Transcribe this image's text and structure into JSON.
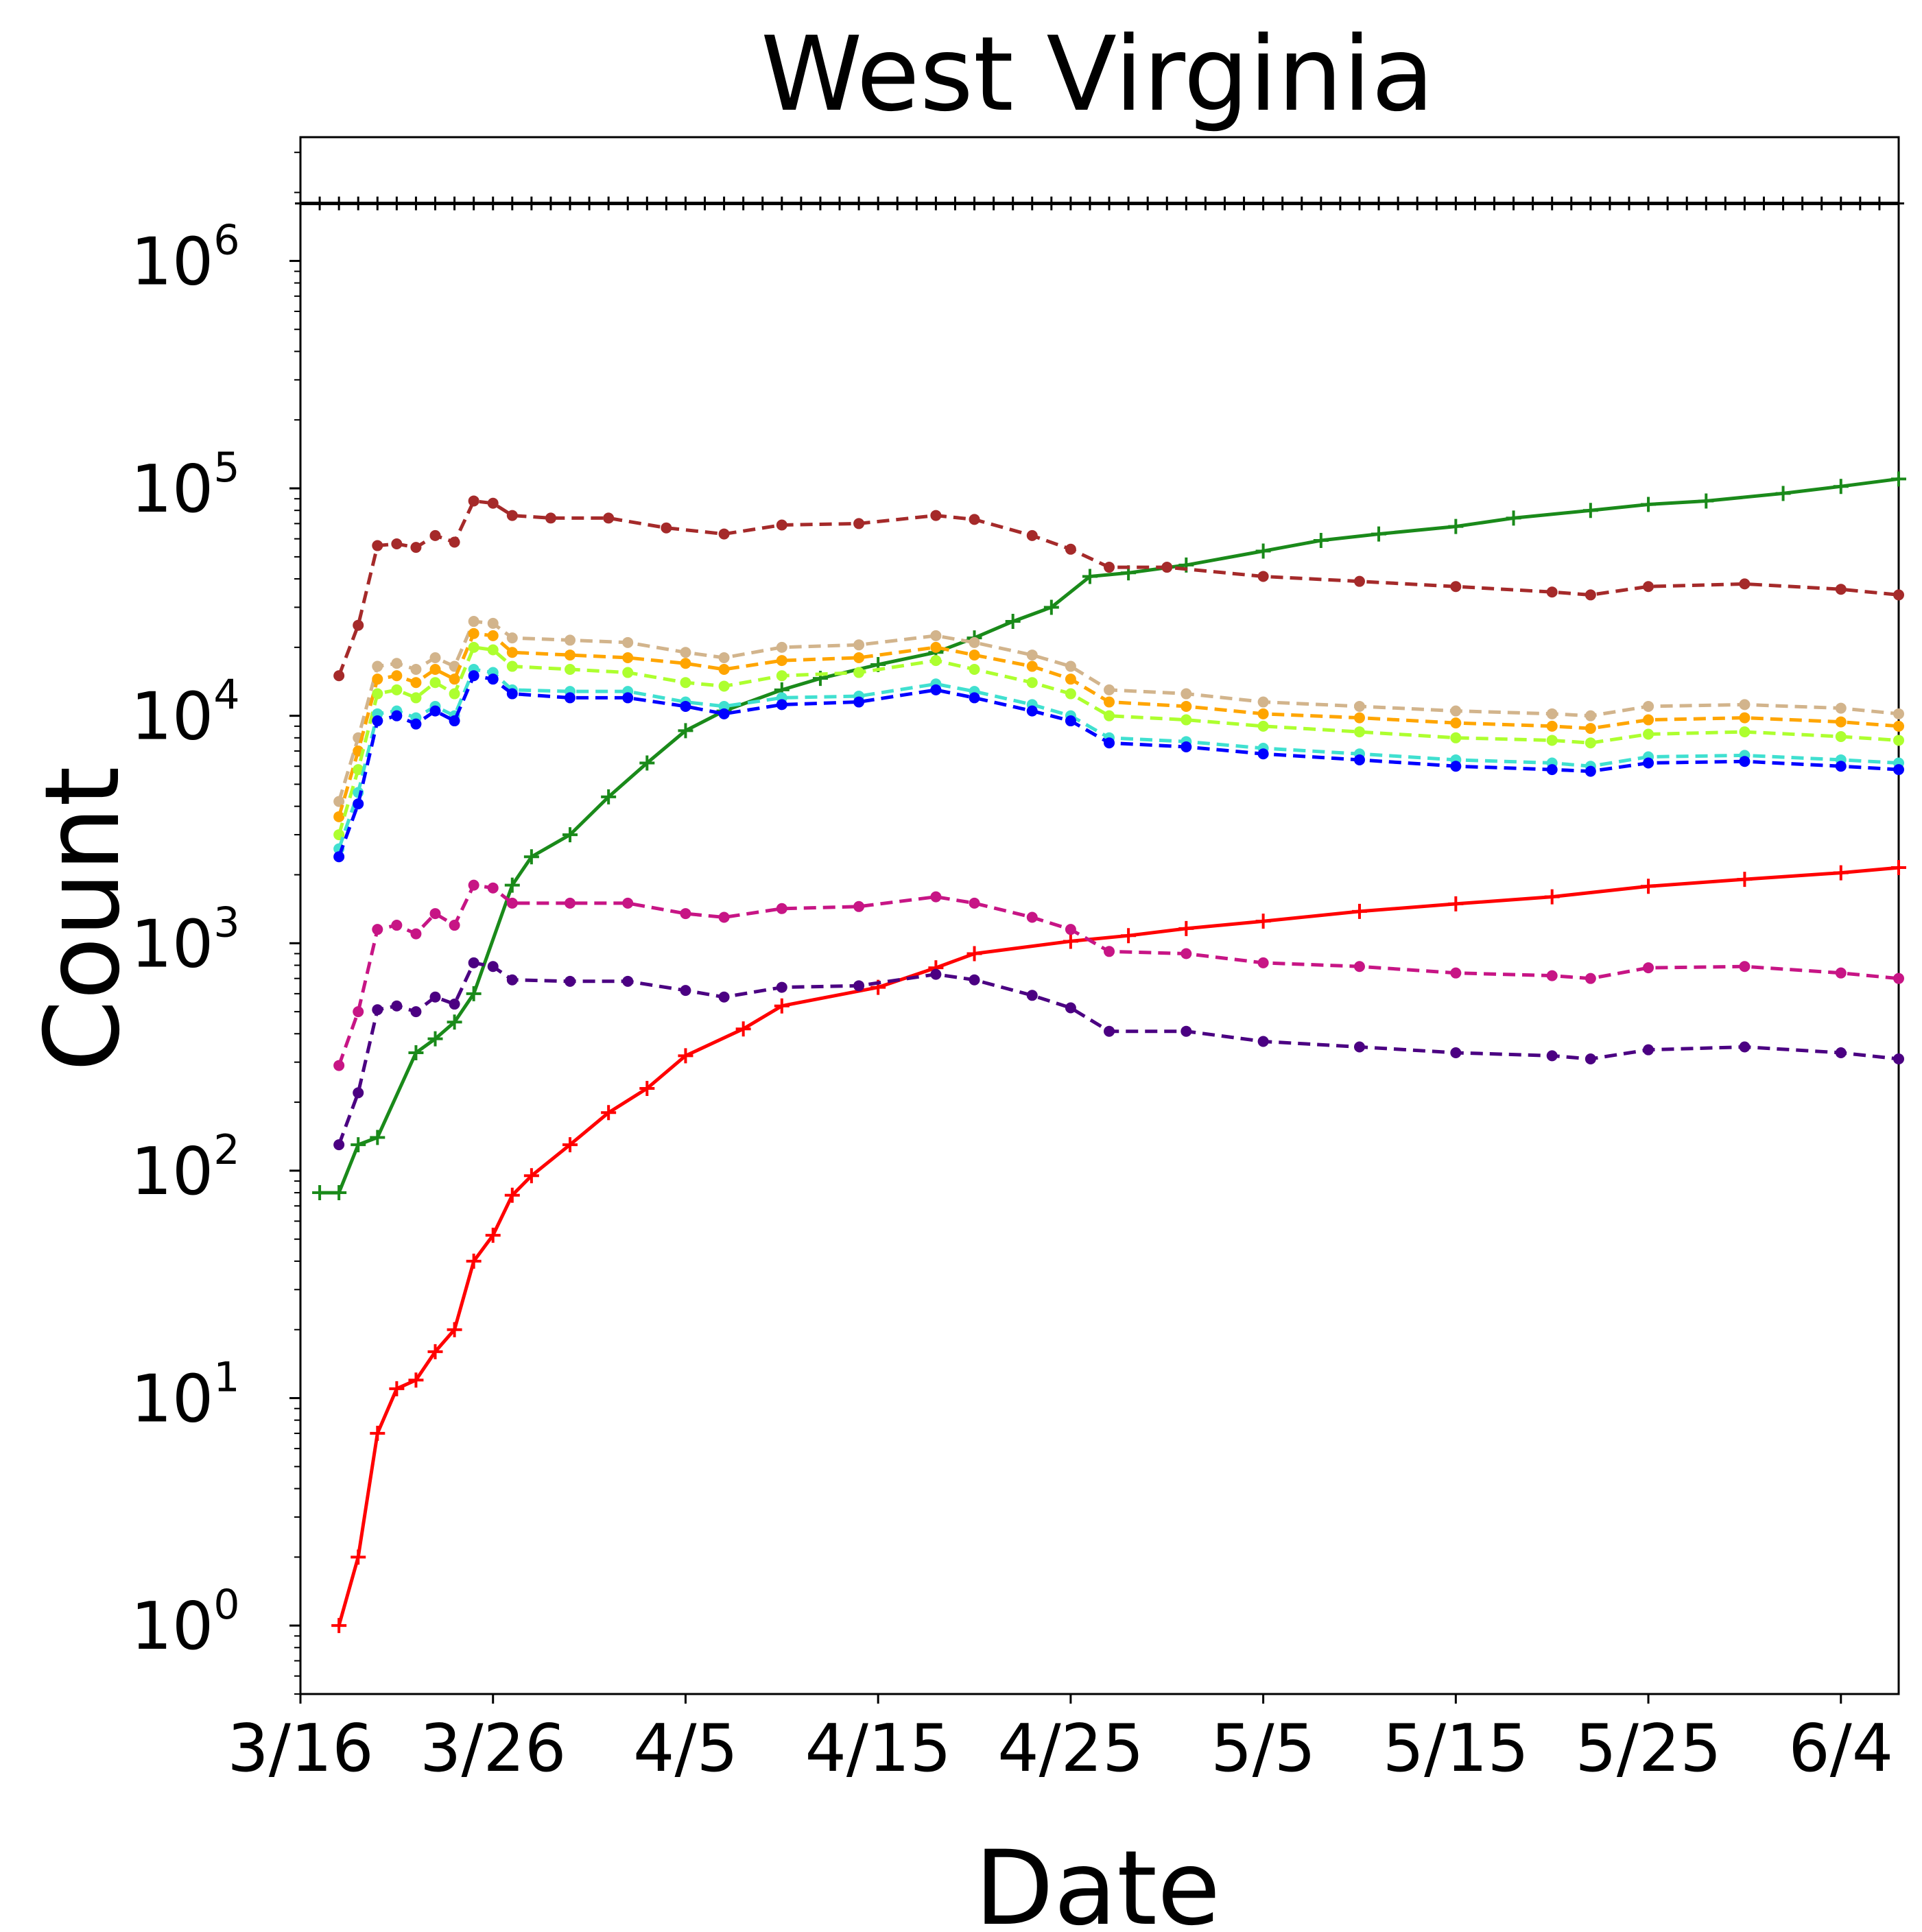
{
  "chart_data": {
    "type": "line",
    "title": "West Virginia",
    "xlabel": "Date",
    "ylabel": "Count",
    "x_tick_labels": [
      "3/16",
      "3/26",
      "4/5",
      "4/15",
      "4/25",
      "5/5",
      "5/15",
      "5/25",
      "6/4"
    ],
    "y_scale": "log",
    "y_ticks": [
      {
        "base": "10",
        "exp": "0"
      },
      {
        "base": "10",
        "exp": "1"
      },
      {
        "base": "10",
        "exp": "2"
      },
      {
        "base": "10",
        "exp": "3"
      },
      {
        "base": "10",
        "exp": "4"
      },
      {
        "base": "10",
        "exp": "5"
      },
      {
        "base": "10",
        "exp": "6"
      }
    ],
    "ylim": [
      0.5,
      3500000
    ],
    "horizontal_reference_line": 1790000,
    "x_range_days": [
      "3/16",
      "6/7"
    ],
    "grid": false,
    "legend": "none",
    "series": [
      {
        "color": "#1a8a1a",
        "style": "solid",
        "marker": "plus",
        "x": [
          "3/17",
          "3/18",
          "3/19",
          "3/20",
          "3/22",
          "3/23",
          "3/24",
          "3/25",
          "3/27",
          "3/28",
          "3/30",
          "4/1",
          "4/3",
          "4/5",
          "4/7",
          "4/10",
          "4/12",
          "4/15",
          "4/18",
          "4/20",
          "4/22",
          "4/24",
          "4/26",
          "4/28",
          "5/1",
          "5/5",
          "5/8",
          "5/11",
          "5/15",
          "5/18",
          "5/22",
          "5/25",
          "5/28",
          "6/1",
          "6/4",
          "6/7"
        ],
        "values": [
          80,
          80,
          130,
          140,
          330,
          380,
          450,
          600,
          1800,
          2400,
          3000,
          4400,
          6200,
          8600,
          10500,
          13000,
          14600,
          16800,
          19000,
          22000,
          26000,
          30000,
          41000,
          42500,
          46000,
          53000,
          59000,
          63000,
          68000,
          74000,
          80000,
          85000,
          88000,
          95000,
          102000,
          110000
        ]
      },
      {
        "color": "#ff0000",
        "style": "solid",
        "marker": "plus",
        "x": [
          "3/18",
          "3/19",
          "3/20",
          "3/21",
          "3/22",
          "3/23",
          "3/24",
          "3/25",
          "3/26",
          "3/27",
          "3/28",
          "3/30",
          "4/1",
          "4/3",
          "4/5",
          "4/8",
          "4/10",
          "4/15",
          "4/18",
          "4/20",
          "4/25",
          "4/28",
          "5/1",
          "5/5",
          "5/10",
          "5/15",
          "5/20",
          "5/25",
          "5/30",
          "6/4",
          "6/7"
        ],
        "values": [
          1,
          2,
          7,
          11,
          12,
          16,
          20,
          40,
          52,
          78,
          95,
          130,
          180,
          230,
          320,
          420,
          530,
          640,
          780,
          900,
          1020,
          1080,
          1160,
          1250,
          1380,
          1490,
          1600,
          1780,
          1910,
          2040,
          2150
        ]
      },
      {
        "color": "#a52a2a",
        "style": "dashed",
        "marker": "dot",
        "x": [
          "3/18",
          "3/19",
          "3/20",
          "3/21",
          "3/22",
          "3/23",
          "3/24",
          "3/25",
          "3/26",
          "3/27",
          "3/29",
          "4/1",
          "4/4",
          "4/7",
          "4/10",
          "4/14",
          "4/18",
          "4/20",
          "4/23",
          "4/25",
          "4/27",
          "4/30",
          "5/5",
          "5/10",
          "5/15",
          "5/20",
          "5/22",
          "5/25",
          "5/30",
          "6/4",
          "6/7"
        ],
        "values": [
          15000,
          25000,
          56000,
          57000,
          55000,
          62000,
          58000,
          88000,
          86000,
          76000,
          74000,
          74000,
          67000,
          63000,
          69000,
          70000,
          76000,
          73000,
          62000,
          54000,
          45000,
          45000,
          41000,
          39000,
          37000,
          35000,
          34000,
          37000,
          38000,
          36000,
          34000
        ]
      },
      {
        "color": "#d2b48c",
        "style": "dashed",
        "marker": "dot",
        "x": [
          "3/18",
          "3/19",
          "3/20",
          "3/21",
          "3/22",
          "3/23",
          "3/24",
          "3/25",
          "3/26",
          "3/27",
          "3/30",
          "4/2",
          "4/5",
          "4/7",
          "4/10",
          "4/14",
          "4/18",
          "4/20",
          "4/23",
          "4/25",
          "4/27",
          "5/1",
          "5/5",
          "5/10",
          "5/15",
          "5/20",
          "5/22",
          "5/25",
          "5/30",
          "6/4",
          "6/7"
        ],
        "values": [
          4200,
          8000,
          16500,
          17000,
          16000,
          18000,
          16500,
          26000,
          25500,
          22000,
          21500,
          21000,
          19000,
          18000,
          20000,
          20500,
          22500,
          21000,
          18500,
          16500,
          13000,
          12500,
          11500,
          11000,
          10500,
          10200,
          10000,
          11000,
          11200,
          10800,
          10200
        ]
      },
      {
        "color": "#ffa500",
        "style": "dashed",
        "marker": "dot",
        "x": [
          "3/18",
          "3/19",
          "3/20",
          "3/21",
          "3/22",
          "3/23",
          "3/24",
          "3/25",
          "3/26",
          "3/27",
          "3/30",
          "4/2",
          "4/5",
          "4/7",
          "4/10",
          "4/14",
          "4/18",
          "4/20",
          "4/23",
          "4/25",
          "4/27",
          "5/1",
          "5/5",
          "5/10",
          "5/15",
          "5/20",
          "5/22",
          "5/25",
          "5/30",
          "6/4",
          "6/7"
        ],
        "values": [
          3600,
          7000,
          14500,
          15000,
          14000,
          16000,
          14500,
          23000,
          22500,
          19000,
          18500,
          18000,
          17000,
          16000,
          17500,
          18000,
          20000,
          18500,
          16500,
          14500,
          11500,
          11000,
          10200,
          9800,
          9300,
          9000,
          8800,
          9600,
          9800,
          9400,
          9000
        ]
      },
      {
        "color": "#adff2f",
        "style": "dashed",
        "marker": "dot",
        "x": [
          "3/18",
          "3/19",
          "3/20",
          "3/21",
          "3/22",
          "3/23",
          "3/24",
          "3/25",
          "3/26",
          "3/27",
          "3/30",
          "4/2",
          "4/5",
          "4/7",
          "4/10",
          "4/14",
          "4/18",
          "4/20",
          "4/23",
          "4/25",
          "4/27",
          "5/1",
          "5/5",
          "5/10",
          "5/15",
          "5/20",
          "5/22",
          "5/25",
          "5/30",
          "6/4",
          "6/7"
        ],
        "values": [
          3000,
          5800,
          12500,
          13000,
          12000,
          14000,
          12500,
          20000,
          19500,
          16500,
          16000,
          15500,
          14000,
          13500,
          15000,
          15500,
          17500,
          16000,
          14000,
          12500,
          10000,
          9600,
          9000,
          8500,
          8000,
          7800,
          7600,
          8300,
          8500,
          8100,
          7800
        ]
      },
      {
        "color": "#40e0d0",
        "style": "dashed",
        "marker": "dot",
        "x": [
          "3/18",
          "3/19",
          "3/20",
          "3/21",
          "3/22",
          "3/23",
          "3/24",
          "3/25",
          "3/26",
          "3/27",
          "3/30",
          "4/2",
          "4/5",
          "4/7",
          "4/10",
          "4/14",
          "4/18",
          "4/20",
          "4/23",
          "4/25",
          "4/27",
          "5/1",
          "5/5",
          "5/10",
          "5/15",
          "5/20",
          "5/22",
          "5/25",
          "5/30",
          "6/4",
          "6/7"
        ],
        "values": [
          2600,
          4600,
          10200,
          10500,
          9800,
          11000,
          10000,
          16000,
          15500,
          13000,
          12800,
          12800,
          11500,
          11000,
          12000,
          12200,
          13800,
          12800,
          11200,
          10000,
          8000,
          7700,
          7200,
          6800,
          6400,
          6200,
          6000,
          6600,
          6700,
          6400,
          6200
        ]
      },
      {
        "color": "#0000ff",
        "style": "dashed",
        "marker": "dot",
        "x": [
          "3/18",
          "3/19",
          "3/20",
          "3/21",
          "3/22",
          "3/23",
          "3/24",
          "3/25",
          "3/26",
          "3/27",
          "3/30",
          "4/2",
          "4/5",
          "4/7",
          "4/10",
          "4/14",
          "4/18",
          "4/20",
          "4/23",
          "4/25",
          "4/27",
          "5/1",
          "5/5",
          "5/10",
          "5/15",
          "5/20",
          "5/22",
          "5/25",
          "5/30",
          "6/4",
          "6/7"
        ],
        "values": [
          2400,
          4100,
          9500,
          10000,
          9200,
          10500,
          9500,
          15000,
          14500,
          12500,
          12000,
          12000,
          11000,
          10200,
          11200,
          11500,
          13000,
          12000,
          10500,
          9500,
          7600,
          7300,
          6800,
          6400,
          6000,
          5800,
          5700,
          6200,
          6300,
          6000,
          5800
        ]
      },
      {
        "color": "#c71585",
        "style": "dashed",
        "marker": "dot",
        "x": [
          "3/18",
          "3/19",
          "3/20",
          "3/21",
          "3/22",
          "3/23",
          "3/24",
          "3/25",
          "3/26",
          "3/27",
          "3/30",
          "4/2",
          "4/5",
          "4/7",
          "4/10",
          "4/14",
          "4/18",
          "4/20",
          "4/23",
          "4/25",
          "4/27",
          "5/1",
          "5/5",
          "5/10",
          "5/15",
          "5/20",
          "5/22",
          "5/25",
          "5/30",
          "6/4",
          "6/7"
        ],
        "values": [
          290,
          500,
          1150,
          1200,
          1100,
          1350,
          1200,
          1800,
          1750,
          1500,
          1500,
          1500,
          1350,
          1300,
          1420,
          1450,
          1600,
          1500,
          1300,
          1150,
          920,
          900,
          820,
          790,
          740,
          720,
          700,
          780,
          790,
          740,
          700
        ]
      },
      {
        "color": "#4b0082",
        "style": "dashed",
        "marker": "dot",
        "x": [
          "3/18",
          "3/19",
          "3/20",
          "3/21",
          "3/22",
          "3/23",
          "3/24",
          "3/25",
          "3/26",
          "3/27",
          "3/30",
          "4/2",
          "4/5",
          "4/7",
          "4/10",
          "4/14",
          "4/18",
          "4/20",
          "4/23",
          "4/25",
          "4/27",
          "5/1",
          "5/5",
          "5/10",
          "5/15",
          "5/20",
          "5/22",
          "5/25",
          "5/30",
          "6/4",
          "6/7"
        ],
        "values": [
          130,
          220,
          510,
          530,
          500,
          580,
          540,
          820,
          790,
          690,
          680,
          680,
          620,
          580,
          640,
          650,
          730,
          690,
          590,
          520,
          410,
          410,
          370,
          350,
          330,
          320,
          310,
          340,
          350,
          330,
          310
        ]
      }
    ]
  }
}
